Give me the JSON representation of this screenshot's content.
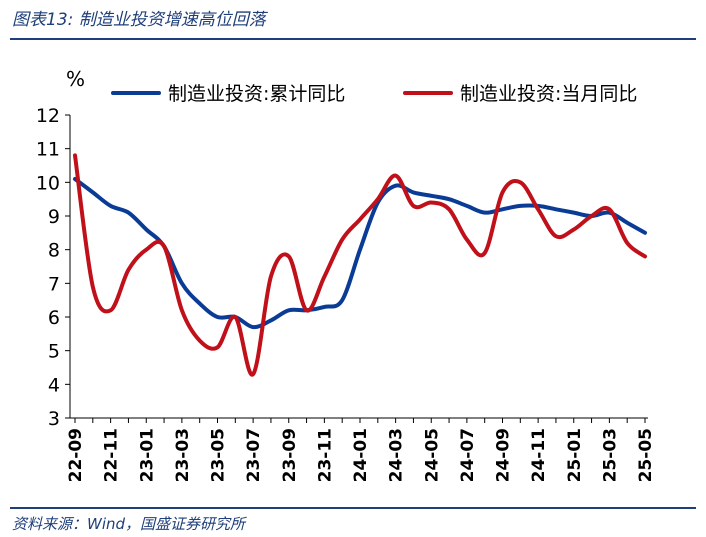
{
  "figure": {
    "title": "图表13:  制造业投资增速高位回落",
    "source": "资料来源：Wind，国盛证券研究所"
  },
  "chart_data": {
    "type": "line",
    "unit_label": "%",
    "ylim": [
      3,
      12
    ],
    "yticks": [
      3,
      4,
      5,
      6,
      7,
      8,
      9,
      10,
      11,
      12
    ],
    "grid": false,
    "legend_position": "top",
    "x": [
      "22-09",
      "22-10",
      "22-11",
      "22-12",
      "23-01",
      "23-02",
      "23-03",
      "23-04",
      "23-05",
      "23-06",
      "23-07",
      "23-08",
      "23-09",
      "23-10",
      "23-11",
      "23-12",
      "24-01",
      "24-02",
      "24-03",
      "24-04",
      "24-05",
      "24-06",
      "24-07",
      "24-08",
      "24-09",
      "24-10",
      "24-11",
      "24-12",
      "25-01",
      "25-02",
      "25-03",
      "25-04",
      "25-05"
    ],
    "x_tick_labels": [
      "22-09",
      "22-11",
      "23-01",
      "23-03",
      "23-05",
      "23-07",
      "23-09",
      "23-11",
      "24-01",
      "24-03",
      "24-05",
      "24-07",
      "24-09",
      "24-11",
      "25-01",
      "25-03",
      "25-05"
    ],
    "series": [
      {
        "name": "制造业投资:累计同比",
        "color": "#0a3c96",
        "values": [
          10.1,
          9.7,
          9.3,
          9.1,
          8.6,
          8.1,
          7.0,
          6.4,
          6.0,
          6.0,
          5.7,
          5.9,
          6.2,
          6.2,
          6.3,
          6.5,
          8.0,
          9.4,
          9.9,
          9.7,
          9.6,
          9.5,
          9.3,
          9.1,
          9.2,
          9.3,
          9.3,
          9.2,
          9.1,
          9.0,
          9.1,
          8.8,
          8.5
        ]
      },
      {
        "name": "制造业投资:当月同比",
        "color": "#c0101a",
        "values": [
          10.8,
          6.9,
          6.2,
          7.4,
          8.0,
          8.1,
          6.2,
          5.3,
          5.1,
          6.0,
          4.3,
          7.2,
          7.8,
          6.2,
          7.2,
          8.3,
          8.9,
          9.5,
          10.2,
          9.3,
          9.4,
          9.2,
          8.3,
          7.9,
          9.7,
          10.0,
          9.2,
          8.4,
          8.6,
          9.0,
          9.2,
          8.2,
          7.8
        ]
      }
    ]
  }
}
